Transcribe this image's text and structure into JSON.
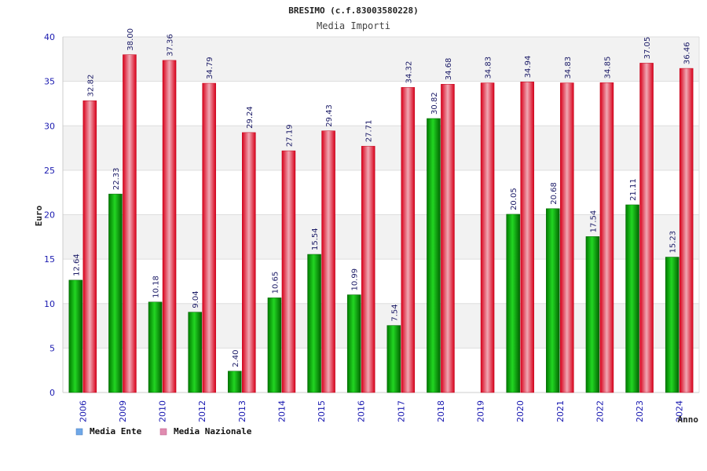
{
  "chart_data": {
    "type": "bar",
    "title": "BRESIMO (c.f.83003580228)",
    "subtitle": "Media Importi",
    "ylabel": "Euro",
    "xlabel": "Anno",
    "ylim": [
      0,
      40
    ],
    "yticks": [
      0,
      5,
      10,
      15,
      20,
      25,
      30,
      35,
      40
    ],
    "grid": true,
    "legend_position": "bottom-left",
    "categories": [
      "2006",
      "2009",
      "2010",
      "2012",
      "2013",
      "2014",
      "2015",
      "2016",
      "2017",
      "2018",
      "2019",
      "2020",
      "2021",
      "2022",
      "2023",
      "2024"
    ],
    "series": [
      {
        "name": "Media Ente",
        "color": "#00b400",
        "legend_color": "#6fa8e8",
        "values": [
          12.64,
          22.33,
          10.18,
          9.04,
          2.4,
          10.65,
          15.54,
          10.99,
          7.54,
          30.82,
          null,
          20.05,
          20.68,
          17.54,
          21.11,
          15.23
        ],
        "labels": [
          "12.64",
          "22.33",
          "10.18",
          "9.04",
          "2.40",
          "10.65",
          "15.54",
          "10.99",
          "7.54",
          "30.82",
          "",
          "20.05",
          "20.68",
          "17.54",
          "21.11",
          "15.23"
        ]
      },
      {
        "name": "Media Nazionale",
        "color": "#e8001c",
        "legend_color": "#e08cb0",
        "values": [
          32.82,
          38.0,
          37.36,
          34.79,
          29.24,
          27.19,
          29.43,
          27.71,
          34.32,
          34.68,
          34.83,
          34.94,
          34.83,
          34.85,
          37.05,
          36.46
        ],
        "labels": [
          "32.82",
          "38.00",
          "37.36",
          "34.79",
          "29.24",
          "27.19",
          "29.43",
          "27.71",
          "34.32",
          "34.68",
          "34.83",
          "34.94",
          "34.83",
          "34.85",
          "37.05",
          "36.46"
        ]
      }
    ]
  }
}
